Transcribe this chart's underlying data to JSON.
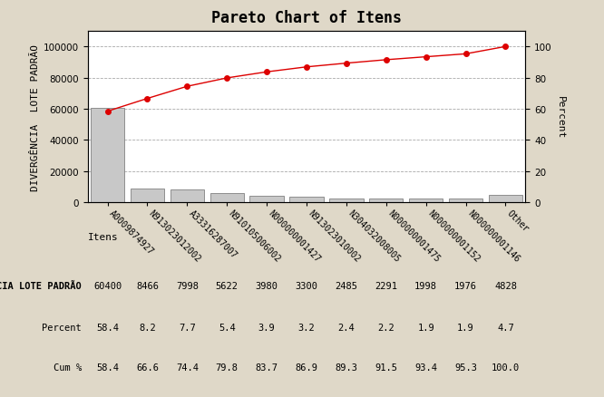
{
  "title": "Pareto Chart of Itens",
  "xlabel": "Itens",
  "ylabel_left": "DIVERGÊNCIA  LOTE PADRÃO",
  "ylabel_right": "Percent",
  "categories": [
    "A0009874927",
    "N913023012002",
    "A33316287007",
    "N910105006002",
    "N000000001427",
    "N913023010002",
    "N304032008005",
    "N000000001475",
    "N000000001152",
    "N000000001146",
    "Other"
  ],
  "values": [
    60400,
    8466,
    7998,
    5622,
    3980,
    3300,
    2485,
    2291,
    1998,
    1976,
    4828
  ],
  "cum_pct": [
    58.4,
    66.6,
    74.4,
    79.8,
    83.7,
    86.9,
    89.3,
    91.5,
    93.4,
    95.3,
    100.0
  ],
  "percent": [
    58.4,
    8.2,
    7.7,
    5.4,
    3.9,
    3.2,
    2.4,
    2.2,
    1.9,
    1.9,
    4.7
  ],
  "bar_color": "#c8c8c8",
  "bar_edge_color": "#808080",
  "line_color": "#dd0000",
  "marker_color": "#dd0000",
  "background_color": "#dfd8c8",
  "plot_background": "#ffffff",
  "grid_color": "#aaaaaa",
  "title_fontsize": 12,
  "axis_label_fontsize": 8,
  "tick_fontsize": 7.5,
  "table_fontsize": 7.5,
  "ylim_left": [
    0,
    110000
  ],
  "ylim_right": [
    0,
    110
  ],
  "yticks_left": [
    0,
    20000,
    40000,
    60000,
    80000,
    100000
  ],
  "yticks_right": [
    0,
    20,
    40,
    60,
    80,
    100
  ],
  "row1_label": "DIVERGÊNCIA LOTE PADRÃO",
  "row2_label": "Percent",
  "row3_label": "Cum %"
}
